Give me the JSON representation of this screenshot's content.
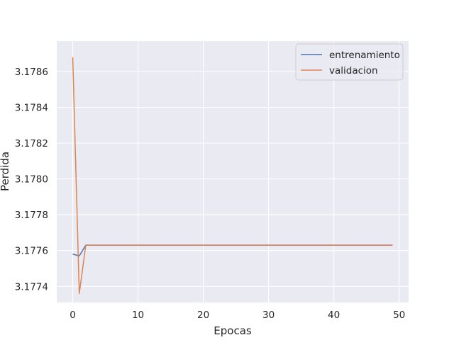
{
  "chart_data": {
    "type": "line",
    "xlabel": "Epocas",
    "ylabel": "Perdida",
    "xlim": [
      -2.45,
      51.45
    ],
    "ylim": [
      3.17731,
      3.17877
    ],
    "xticks": [
      0,
      10,
      20,
      30,
      40,
      50
    ],
    "yticks": [
      3.1774,
      3.1776,
      3.1778,
      3.178,
      3.1782,
      3.1784,
      3.1786
    ],
    "ytick_labels": [
      "3.1774",
      "3.1776",
      "3.1778",
      "3.1780",
      "3.1782",
      "3.1784",
      "3.1786"
    ],
    "grid": true,
    "legend_position": "top-right",
    "series": [
      {
        "name": "entrenamiento",
        "color": "#4c72b0",
        "x": [
          0,
          1,
          2,
          49
        ],
        "y": [
          3.17758,
          3.17757,
          3.17763,
          3.17763
        ]
      },
      {
        "name": "validacion",
        "color": "#dd8452",
        "x": [
          0,
          1,
          2,
          49
        ],
        "y": [
          3.17868,
          3.17736,
          3.17763,
          3.17763
        ]
      }
    ]
  }
}
